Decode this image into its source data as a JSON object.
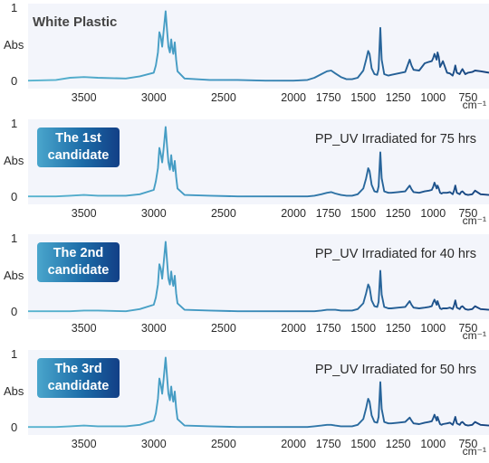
{
  "chart_data": [
    {
      "type": "line",
      "title": "White Plastic",
      "subtitle": "",
      "badge": [],
      "xlabel": "cm⁻¹",
      "ylabel": "Abs",
      "xlim": [
        3900,
        600
      ],
      "ylim": [
        0,
        1
      ],
      "xticks": [
        "3500",
        "3000",
        "2500",
        "2000",
        "1750",
        "1500",
        "1250",
        "1000",
        "750"
      ],
      "yticks": [
        "0",
        "1"
      ],
      "series": [
        {
          "x": [
            3900,
            3700,
            3600,
            3500,
            3400,
            3200,
            3100,
            3000,
            2985,
            2970,
            2960,
            2950,
            2940,
            2930,
            2915,
            2905,
            2895,
            2885,
            2875,
            2868,
            2860,
            2850,
            2840,
            2830,
            2780,
            2600,
            2400,
            2200,
            2000,
            1900,
            1850,
            1800,
            1760,
            1730,
            1700,
            1660,
            1620,
            1580,
            1540,
            1500,
            1480,
            1470,
            1465,
            1455,
            1440,
            1420,
            1400,
            1390,
            1378,
            1368,
            1350,
            1320,
            1300,
            1250,
            1200,
            1168,
            1155,
            1140,
            1100,
            1060,
            1030,
            1010,
            1000,
            990,
            975,
            968,
            960,
            950,
            940,
            930,
            900,
            880,
            860,
            850,
            841,
            830,
            810,
            800,
            790,
            770,
            750,
            720,
            700,
            660,
            600
          ],
          "y": [
            0.01,
            0.02,
            0.05,
            0.06,
            0.05,
            0.04,
            0.07,
            0.12,
            0.22,
            0.4,
            0.68,
            0.62,
            0.48,
            0.68,
            0.97,
            0.7,
            0.48,
            0.4,
            0.58,
            0.46,
            0.38,
            0.54,
            0.3,
            0.14,
            0.04,
            0.02,
            0.02,
            0.01,
            0.01,
            0.02,
            0.05,
            0.1,
            0.14,
            0.15,
            0.11,
            0.06,
            0.03,
            0.03,
            0.05,
            0.15,
            0.3,
            0.38,
            0.42,
            0.38,
            0.18,
            0.1,
            0.09,
            0.17,
            0.74,
            0.3,
            0.1,
            0.08,
            0.09,
            0.11,
            0.13,
            0.3,
            0.22,
            0.16,
            0.15,
            0.25,
            0.27,
            0.28,
            0.32,
            0.38,
            0.3,
            0.4,
            0.34,
            0.2,
            0.24,
            0.28,
            0.12,
            0.11,
            0.08,
            0.14,
            0.22,
            0.12,
            0.1,
            0.14,
            0.17,
            0.1,
            0.12,
            0.13,
            0.15,
            0.14,
            0.12
          ]
        }
      ]
    },
    {
      "type": "line",
      "title": "",
      "subtitle": "PP_UV Irradiated for 75 hrs",
      "badge": [
        "The 1st",
        "candidate"
      ],
      "xlabel": "cm⁻¹",
      "ylabel": "Abs",
      "xlim": [
        3900,
        600
      ],
      "ylim": [
        0,
        1
      ],
      "xticks": [
        "3500",
        "3000",
        "2500",
        "2000",
        "1750",
        "1500",
        "1250",
        "1000",
        "750"
      ],
      "yticks": [
        "0",
        "1"
      ],
      "series": [
        {
          "x": [
            3900,
            3700,
            3600,
            3500,
            3400,
            3200,
            3100,
            3000,
            2985,
            2970,
            2960,
            2950,
            2940,
            2930,
            2915,
            2905,
            2895,
            2885,
            2875,
            2868,
            2860,
            2850,
            2840,
            2830,
            2780,
            2600,
            2400,
            2200,
            2000,
            1900,
            1850,
            1800,
            1760,
            1730,
            1700,
            1660,
            1620,
            1580,
            1540,
            1500,
            1480,
            1470,
            1465,
            1455,
            1440,
            1420,
            1400,
            1390,
            1378,
            1368,
            1350,
            1320,
            1300,
            1250,
            1200,
            1168,
            1155,
            1140,
            1100,
            1060,
            1030,
            1010,
            1000,
            990,
            975,
            968,
            960,
            950,
            940,
            930,
            900,
            880,
            860,
            850,
            841,
            830,
            810,
            800,
            790,
            770,
            750,
            720,
            700,
            660,
            600
          ],
          "y": [
            0.01,
            0.01,
            0.02,
            0.03,
            0.02,
            0.02,
            0.04,
            0.1,
            0.22,
            0.4,
            0.68,
            0.6,
            0.48,
            0.66,
            0.97,
            0.7,
            0.48,
            0.38,
            0.58,
            0.44,
            0.36,
            0.5,
            0.28,
            0.12,
            0.03,
            0.02,
            0.01,
            0.01,
            0.01,
            0.01,
            0.02,
            0.04,
            0.06,
            0.07,
            0.05,
            0.03,
            0.02,
            0.02,
            0.04,
            0.12,
            0.26,
            0.35,
            0.4,
            0.36,
            0.17,
            0.08,
            0.07,
            0.15,
            0.62,
            0.26,
            0.08,
            0.06,
            0.06,
            0.07,
            0.08,
            0.16,
            0.11,
            0.07,
            0.06,
            0.08,
            0.09,
            0.1,
            0.14,
            0.2,
            0.12,
            0.16,
            0.12,
            0.06,
            0.05,
            0.06,
            0.06,
            0.07,
            0.04,
            0.09,
            0.16,
            0.06,
            0.04,
            0.07,
            0.08,
            0.04,
            0.03,
            0.04,
            0.09,
            0.04,
            0.03
          ]
        }
      ]
    },
    {
      "type": "line",
      "title": "",
      "subtitle": "PP_UV Irradiated for 40 hrs",
      "badge": [
        "The 2nd",
        "candidate"
      ],
      "xlabel": "cm⁻¹",
      "ylabel": "Abs",
      "xlim": [
        3900,
        600
      ],
      "ylim": [
        0,
        1
      ],
      "xticks": [
        "3500",
        "3000",
        "2500",
        "2000",
        "1750",
        "1500",
        "1250",
        "1000",
        "750"
      ],
      "yticks": [
        "0",
        "1"
      ],
      "series": [
        {
          "x": [
            3900,
            3700,
            3600,
            3500,
            3400,
            3200,
            3100,
            3000,
            2985,
            2970,
            2960,
            2950,
            2940,
            2930,
            2915,
            2905,
            2895,
            2885,
            2875,
            2868,
            2860,
            2850,
            2840,
            2830,
            2780,
            2600,
            2400,
            2200,
            2000,
            1900,
            1850,
            1800,
            1760,
            1730,
            1700,
            1660,
            1620,
            1580,
            1540,
            1500,
            1480,
            1470,
            1465,
            1455,
            1440,
            1420,
            1400,
            1390,
            1378,
            1368,
            1350,
            1320,
            1300,
            1250,
            1200,
            1168,
            1155,
            1140,
            1100,
            1060,
            1030,
            1010,
            1000,
            990,
            975,
            968,
            960,
            950,
            940,
            930,
            900,
            880,
            860,
            850,
            841,
            830,
            810,
            800,
            790,
            770,
            750,
            720,
            700,
            660,
            600
          ],
          "y": [
            0.01,
            0.01,
            0.01,
            0.02,
            0.02,
            0.01,
            0.04,
            0.1,
            0.2,
            0.38,
            0.66,
            0.6,
            0.46,
            0.66,
            0.97,
            0.7,
            0.46,
            0.38,
            0.56,
            0.44,
            0.36,
            0.5,
            0.26,
            0.12,
            0.03,
            0.02,
            0.01,
            0.01,
            0.01,
            0.01,
            0.01,
            0.02,
            0.03,
            0.03,
            0.03,
            0.02,
            0.02,
            0.02,
            0.04,
            0.12,
            0.26,
            0.34,
            0.38,
            0.34,
            0.16,
            0.08,
            0.07,
            0.14,
            0.57,
            0.24,
            0.07,
            0.05,
            0.05,
            0.06,
            0.07,
            0.15,
            0.1,
            0.06,
            0.05,
            0.06,
            0.07,
            0.08,
            0.13,
            0.17,
            0.1,
            0.15,
            0.1,
            0.05,
            0.04,
            0.05,
            0.05,
            0.06,
            0.04,
            0.09,
            0.16,
            0.06,
            0.04,
            0.07,
            0.08,
            0.04,
            0.03,
            0.04,
            0.08,
            0.04,
            0.03
          ]
        }
      ]
    },
    {
      "type": "line",
      "title": "",
      "subtitle": "PP_UV Irradiated for 50 hrs",
      "badge": [
        "The 3rd",
        "candidate"
      ],
      "xlabel": "cm⁻¹",
      "ylabel": "Abs",
      "xlim": [
        3900,
        600
      ],
      "ylim": [
        0,
        1
      ],
      "xticks": [
        "3500",
        "3000",
        "2500",
        "2000",
        "1750",
        "1500",
        "1250",
        "1000",
        "750"
      ],
      "yticks": [
        "0",
        "1"
      ],
      "series": [
        {
          "x": [
            3900,
            3700,
            3600,
            3500,
            3400,
            3200,
            3100,
            3000,
            2985,
            2970,
            2960,
            2950,
            2940,
            2930,
            2915,
            2905,
            2895,
            2885,
            2875,
            2868,
            2860,
            2850,
            2840,
            2830,
            2780,
            2600,
            2400,
            2200,
            2000,
            1900,
            1850,
            1800,
            1760,
            1730,
            1700,
            1660,
            1620,
            1580,
            1540,
            1500,
            1480,
            1470,
            1465,
            1455,
            1440,
            1420,
            1400,
            1390,
            1378,
            1368,
            1350,
            1320,
            1300,
            1250,
            1200,
            1168,
            1155,
            1140,
            1100,
            1060,
            1030,
            1010,
            1000,
            990,
            975,
            968,
            960,
            950,
            940,
            930,
            900,
            880,
            860,
            850,
            841,
            830,
            810,
            800,
            790,
            770,
            750,
            720,
            700,
            660,
            600
          ],
          "y": [
            0.01,
            0.01,
            0.02,
            0.03,
            0.02,
            0.02,
            0.04,
            0.1,
            0.2,
            0.4,
            0.68,
            0.6,
            0.47,
            0.66,
            0.97,
            0.7,
            0.47,
            0.38,
            0.57,
            0.44,
            0.36,
            0.5,
            0.27,
            0.12,
            0.03,
            0.02,
            0.01,
            0.01,
            0.01,
            0.01,
            0.02,
            0.03,
            0.04,
            0.04,
            0.03,
            0.02,
            0.02,
            0.02,
            0.04,
            0.12,
            0.27,
            0.36,
            0.4,
            0.36,
            0.17,
            0.08,
            0.07,
            0.15,
            0.63,
            0.26,
            0.08,
            0.06,
            0.06,
            0.07,
            0.08,
            0.14,
            0.1,
            0.06,
            0.05,
            0.07,
            0.08,
            0.09,
            0.13,
            0.18,
            0.1,
            0.15,
            0.1,
            0.05,
            0.04,
            0.05,
            0.06,
            0.07,
            0.04,
            0.09,
            0.15,
            0.06,
            0.04,
            0.07,
            0.08,
            0.04,
            0.03,
            0.04,
            0.08,
            0.04,
            0.03
          ]
        }
      ]
    }
  ],
  "colors": {
    "plot_background": "#f3f5fb",
    "spectrum_start": "#58b4cf",
    "spectrum_end": "#16437f",
    "badge_start": "#4aa6cc",
    "badge_end": "#123f86"
  }
}
